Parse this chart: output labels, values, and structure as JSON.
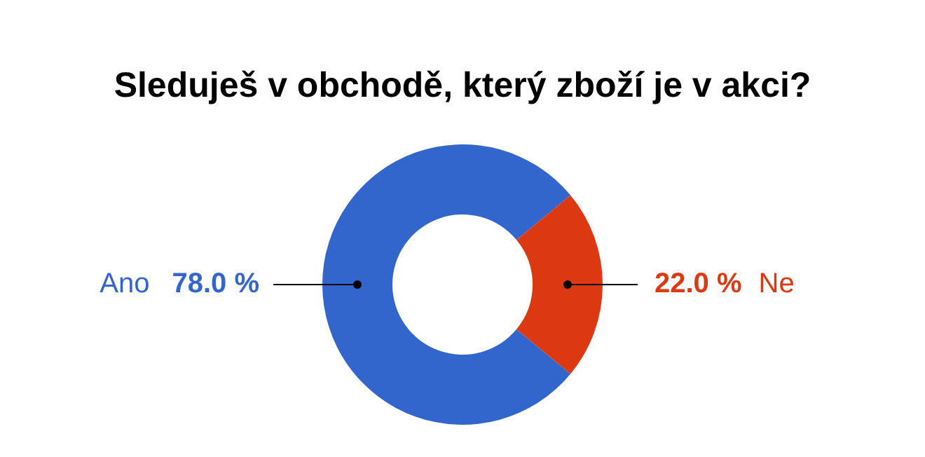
{
  "chart_data": {
    "type": "donut",
    "title": "Sleduješ v obchodě, který zboží je v akci?",
    "categories": [
      "Ano",
      "Ne"
    ],
    "values": [
      78.0,
      22.0
    ],
    "colors": [
      "#3366cc",
      "#dc3912"
    ],
    "value_labels": [
      "78.0 %",
      "22.0 %"
    ],
    "legend": false
  }
}
